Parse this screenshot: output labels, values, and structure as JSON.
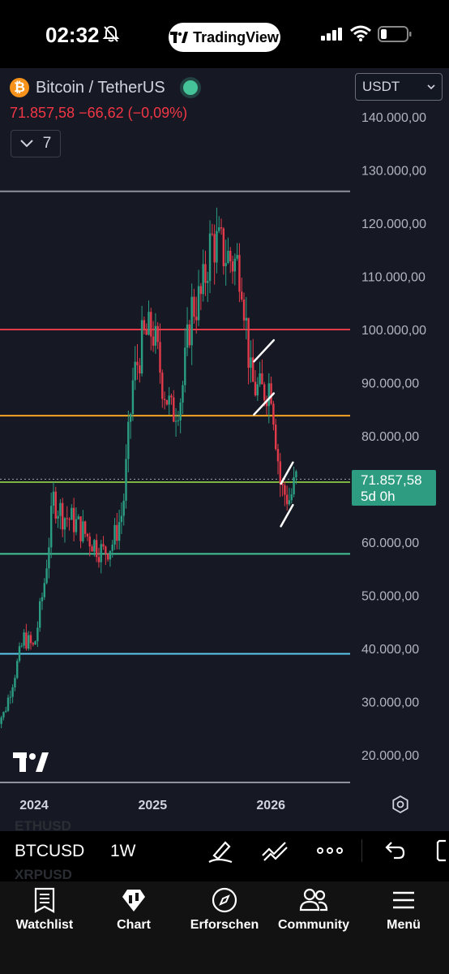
{
  "status": {
    "time": "02:32",
    "app_pill": "TradingView"
  },
  "header": {
    "symbol_name": "Bitcoin / TetherUS",
    "quote": "71.857,58  −66,62 (−0,09%)",
    "collapse_count": "7",
    "currency": "USDT"
  },
  "price_tag": {
    "price": "71.857,58",
    "countdown": "5d 0h"
  },
  "colors": {
    "up": "#2a9d82",
    "down": "#e23a4a",
    "accent_green": "#2e9c80"
  },
  "chart_data": {
    "type": "candlestick",
    "interval": "1W",
    "y_ticks": [
      140000,
      130000,
      120000,
      110000,
      100000,
      90000,
      80000,
      70000,
      60000,
      50000,
      40000,
      30000,
      20000
    ],
    "y_tick_labels": [
      "140.000,00",
      "130.000,00",
      "120.000,00",
      "110.000,00",
      "100.000,00",
      "90.000,00",
      "80.000,00",
      "70.000,00",
      "60.000,00",
      "50.000,00",
      "40.000,00",
      "30.000,00",
      "20.000,00"
    ],
    "x_tick_labels": [
      "2024",
      "2025",
      "2026"
    ],
    "last_price": 71857.58,
    "change": -66.62,
    "change_pct": -0.09,
    "horizontal_levels": [
      {
        "price": 126000,
        "color": "#8f929a"
      },
      {
        "price": 100000,
        "color": "#e23a4a"
      },
      {
        "price": 83800,
        "color": "#f5a524"
      },
      {
        "price": 71300,
        "color": "#7cb342"
      },
      {
        "price": 57800,
        "color": "#45c49a"
      },
      {
        "price": 39000,
        "color": "#5bc8ec"
      },
      {
        "price": 14800,
        "color": "#8f929a"
      }
    ],
    "price_path": [
      [
        "2023-09-01",
        26000
      ],
      [
        "2023-10-01",
        27800
      ],
      [
        "2023-11-01",
        35000
      ],
      [
        "2023-12-01",
        42000
      ],
      [
        "2024-01-01",
        40000
      ],
      [
        "2024-02-01",
        52000
      ],
      [
        "2024-03-01",
        68000
      ],
      [
        "2024-04-01",
        65000
      ],
      [
        "2024-05-01",
        64000
      ],
      [
        "2024-06-01",
        62000
      ],
      [
        "2024-07-01",
        60000
      ],
      [
        "2024-08-01",
        58000
      ],
      [
        "2024-09-01",
        60000
      ],
      [
        "2024-10-01",
        66000
      ],
      [
        "2024-11-01",
        90000
      ],
      [
        "2024-12-01",
        98000
      ],
      [
        "2025-01-01",
        100000
      ],
      [
        "2025-02-01",
        90000
      ],
      [
        "2025-03-01",
        84000
      ],
      [
        "2025-04-01",
        88000
      ],
      [
        "2025-05-01",
        104000
      ],
      [
        "2025-06-01",
        106000
      ],
      [
        "2025-07-01",
        117000
      ],
      [
        "2025-08-01",
        115000
      ],
      [
        "2025-09-01",
        113000
      ],
      [
        "2025-10-01",
        112000
      ],
      [
        "2025-11-01",
        90000
      ],
      [
        "2025-12-01",
        88000
      ],
      [
        "2026-01-01",
        90000
      ],
      [
        "2026-02-01",
        70000
      ],
      [
        "2026-03-01",
        68000
      ],
      [
        "2026-03-20",
        71857.58
      ]
    ],
    "trend_channels": [
      {
        "start": [
          "2025-11-10",
          94000
        ],
        "end": [
          "2026-01-10",
          98000
        ]
      },
      {
        "start": [
          "2025-11-10",
          84000
        ],
        "end": [
          "2026-01-10",
          88000
        ]
      },
      {
        "start": [
          "2026-02-01",
          71000
        ],
        "end": [
          "2026-03-10",
          75000
        ]
      },
      {
        "start": [
          "2026-02-01",
          63000
        ],
        "end": [
          "2026-03-10",
          67000
        ]
      }
    ]
  },
  "toolbar": {
    "symbol": "BTCUSD",
    "interval": "1W",
    "ghost_above": "ETHUSD",
    "ghost_below": "XRPUSD"
  },
  "nav": [
    {
      "label": "Watchlist",
      "icon": "watchlist-icon"
    },
    {
      "label": "Chart",
      "icon": "chart-icon"
    },
    {
      "label": "Erforschen",
      "icon": "compass-icon"
    },
    {
      "label": "Community",
      "icon": "community-icon"
    },
    {
      "label": "Menü",
      "icon": "menu-icon"
    }
  ]
}
